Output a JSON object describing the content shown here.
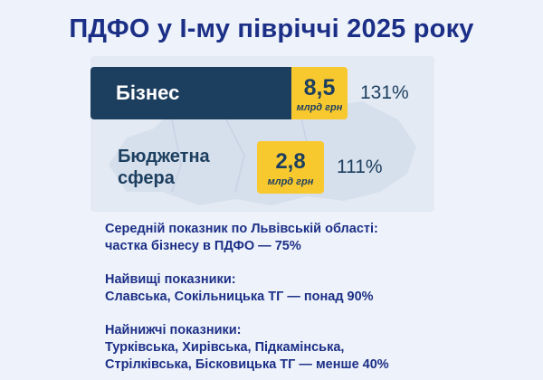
{
  "title": "ПДФО у І-му півріччі 2025 року",
  "chart_data": {
    "type": "bar",
    "categories": [
      "Бізнес",
      "Бюджетна сфера"
    ],
    "category_lines": [
      [
        "Бізнес"
      ],
      [
        "Бюджетна",
        "сфера"
      ]
    ],
    "values": [
      8.5,
      2.8
    ],
    "value_labels": [
      "8,5",
      "2,8"
    ],
    "unit": "млрд грн",
    "percentages": [
      "131%",
      "111%"
    ],
    "colors": {
      "bar_dark": "#1d3f5f",
      "value_box": "#f8c92f",
      "title": "#1c2f86"
    }
  },
  "notes": [
    [
      "Середній показник по Львівській області:",
      "частка бізнесу в ПДФО — 75%"
    ],
    [
      "Найвищі показники:",
      "Славська, Сокільницька ТГ — понад 90%"
    ],
    [
      "Найнижчі показники:",
      "Турківська, Хирівська, Підкамінська,",
      "Стрілківська, Бісковицька ТГ — менше 40%"
    ]
  ]
}
